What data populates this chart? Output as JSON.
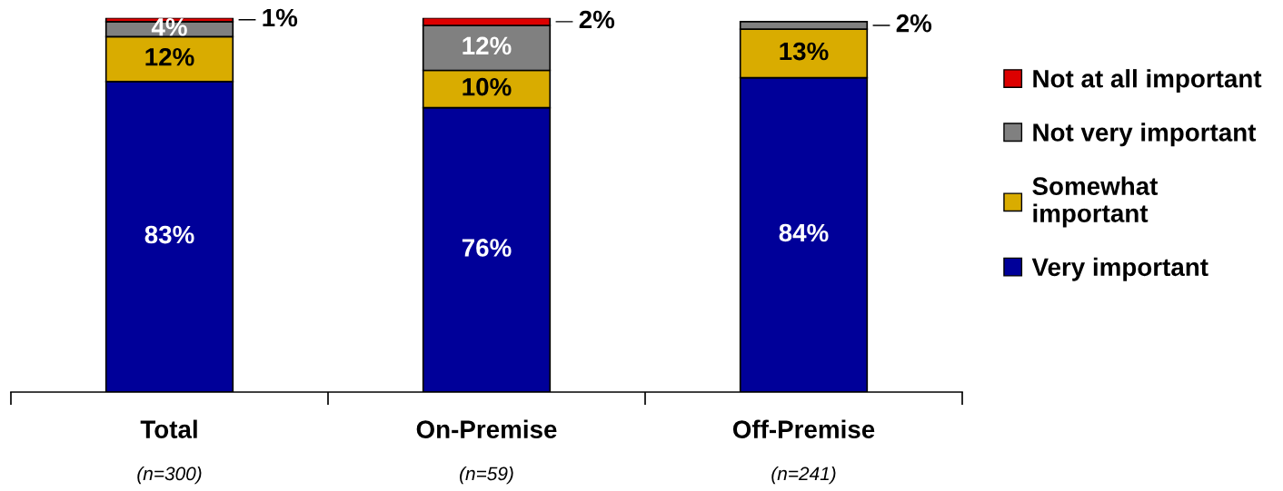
{
  "chart_data": {
    "type": "bar",
    "stacked": true,
    "categories": [
      "Total",
      "On-Premise",
      "Off-Premise"
    ],
    "series": [
      {
        "name": "Very important",
        "color": "#000099",
        "values": [
          83,
          76,
          84
        ],
        "value_labels": [
          "83%",
          "76%",
          "84%"
        ]
      },
      {
        "name": "Somewhat\nimportant",
        "color": "#d9ac00",
        "values": [
          12,
          10,
          13
        ],
        "value_labels": [
          "12%",
          "10%",
          "13%"
        ]
      },
      {
        "name": "Not very important",
        "color": "#808080",
        "values": [
          4,
          12,
          2
        ],
        "value_labels": [
          "4%",
          "12%",
          "2%"
        ]
      },
      {
        "name": "Not at all important",
        "color": "#dd0000",
        "values": [
          1,
          2,
          0
        ],
        "value_labels": [
          "1%",
          "2%",
          null
        ]
      }
    ],
    "annotations": [
      "(n=300)",
      "(n=59)",
      "(n=241)"
    ],
    "legend": "right"
  }
}
